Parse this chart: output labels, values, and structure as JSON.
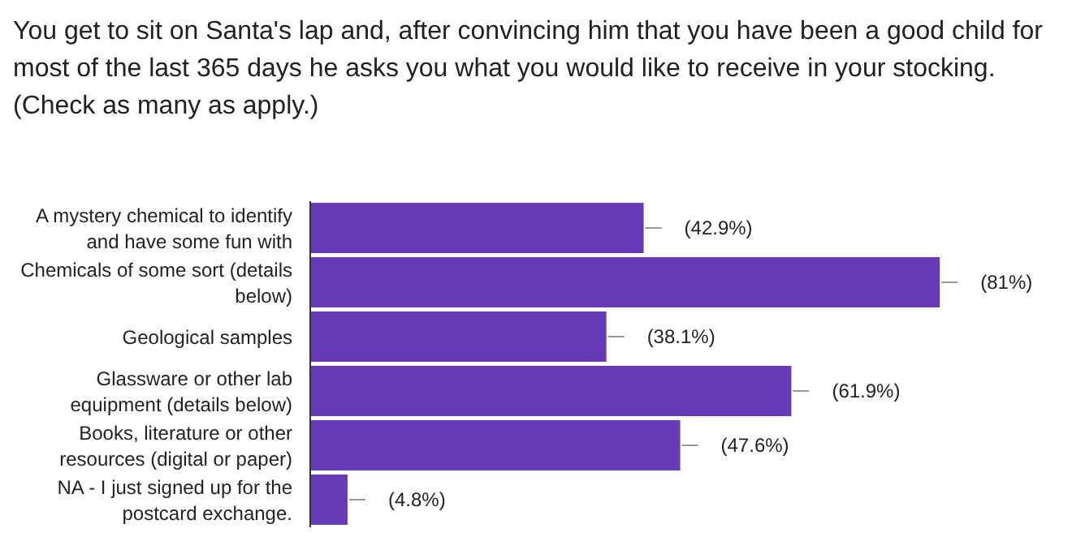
{
  "chart_data": {
    "type": "bar",
    "orientation": "horizontal",
    "title": "You get to sit on Santa's lap and, after convincing him that you have been a good child for most of the last 365 days he asks you what you would like to receive in your stocking.  (Check as many as apply.)",
    "categories": [
      "A mystery chemical to identify and have some fun with",
      "Chemicals of some sort (details below)",
      "Geological samples",
      "Glassware or other lab equipment (details below)",
      "Books, literature or other resources (digital or paper)",
      "NA - I just signed up for the postcard exchange."
    ],
    "values": [
      42.9,
      81,
      38.1,
      61.9,
      47.6,
      4.8
    ],
    "value_labels": [
      "(42.9%)",
      "(81%)",
      "(38.1%)",
      "(61.9%)",
      "(47.6%)",
      "(4.8%)"
    ],
    "color": "#673ab7"
  }
}
